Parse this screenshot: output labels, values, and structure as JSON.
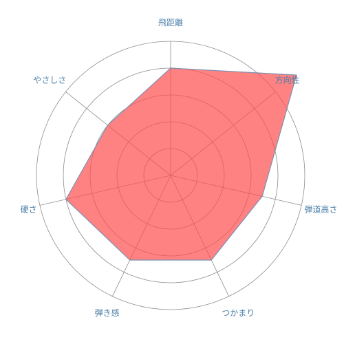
{
  "chart_data": {
    "type": "radar",
    "title": "",
    "axes": [
      "飛距離",
      "方向性",
      "弾道高さ",
      "つかまり",
      "弾き感",
      "硬さ",
      "やさしさ"
    ],
    "series": [
      {
        "values": [
          4,
          6,
          3.5,
          3.5,
          3.5,
          4,
          3
        ]
      }
    ],
    "range": [
      0,
      5
    ],
    "grid_levels": [
      1,
      2,
      3,
      4,
      5
    ],
    "grid": true,
    "legend": "none",
    "colors": {
      "fill": "#ff4d4d",
      "fill_opacity": 0.7,
      "stroke": "#7c8fb0",
      "grid": "#8c8c8c",
      "label": "#4a7fa8"
    }
  }
}
